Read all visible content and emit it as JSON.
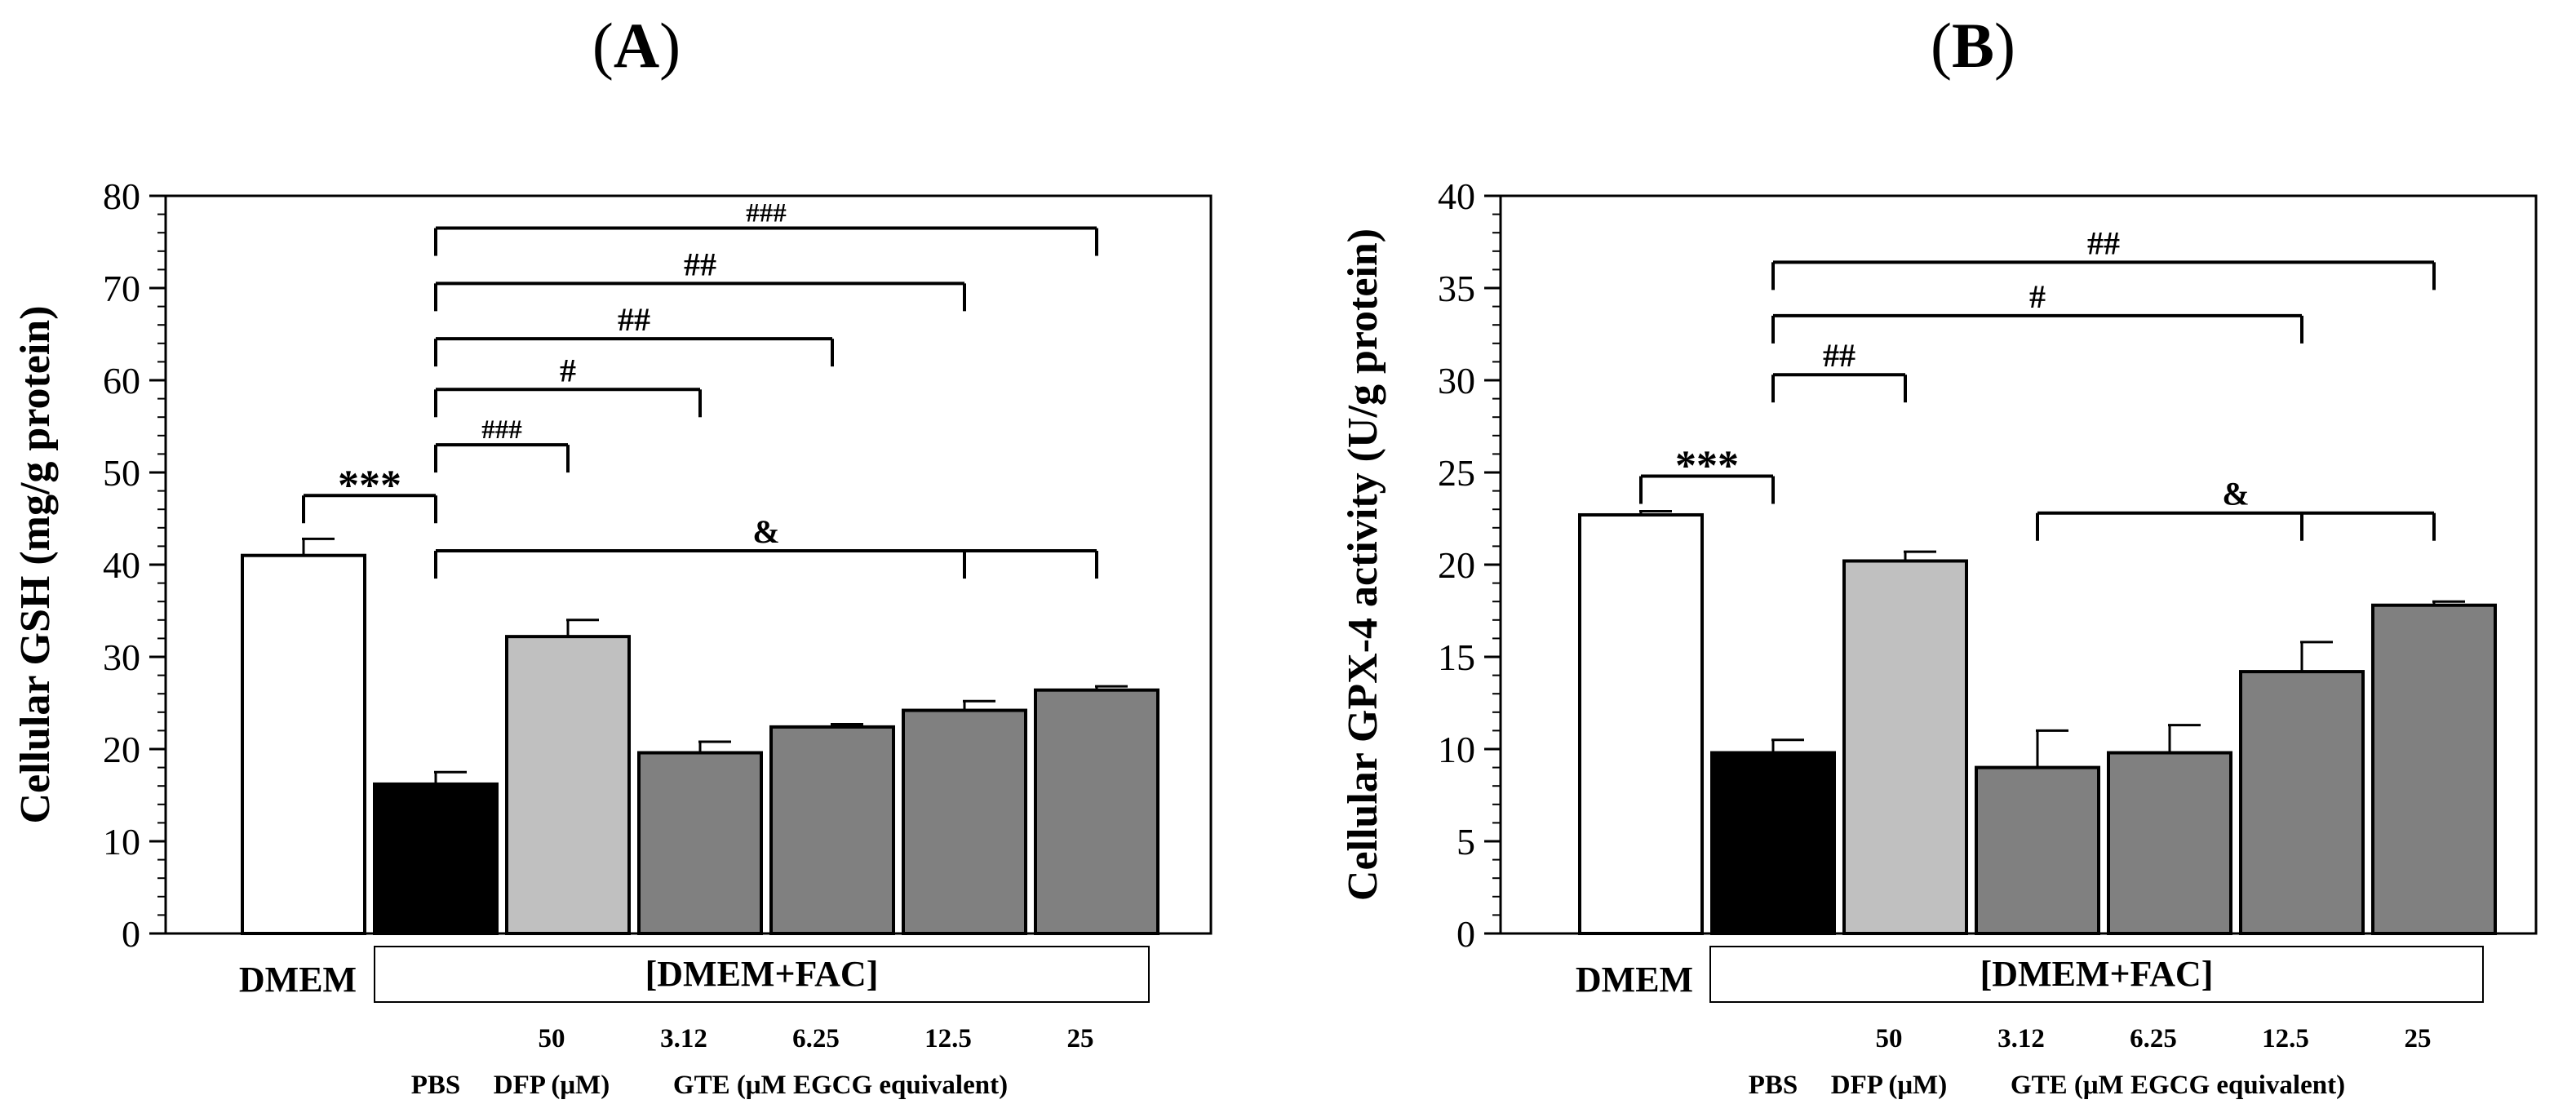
{
  "chart_data": [
    {
      "panel_label": "(A)",
      "type": "bar",
      "ylabel": "Cellular GSH (mg/g protein)",
      "ylim": [
        0,
        80
      ],
      "yticks": [
        0,
        10,
        20,
        30,
        40,
        50,
        60,
        70,
        80
      ],
      "categories": [
        "DMEM",
        "PBS",
        "DFP 50",
        "GTE 3.12",
        "GTE 6.25",
        "GTE 12.5",
        "GTE 25"
      ],
      "values": [
        41.0,
        16.2,
        32.2,
        19.6,
        22.4,
        24.2,
        26.4
      ],
      "errors": [
        1.8,
        1.3,
        1.8,
        1.2,
        0.3,
        1.0,
        0.4
      ],
      "colors": [
        "#ffffff",
        "#000000",
        "#c0c0c0",
        "#808080",
        "#808080",
        "#808080",
        "#808080"
      ],
      "dmem_label": "DMEM",
      "group_box_label": "[DMEM+FAC]",
      "x_labels_top": [
        "50",
        "3.12",
        "6.25",
        "12.5",
        "25"
      ],
      "x_labels_bottom": [
        "PBS",
        "DFP (μM)",
        "GTE (μM EGCG equivalent)"
      ],
      "annotations": [
        {
          "text": "***",
          "from": 0,
          "to": 1,
          "drops": [],
          "level": 47.5,
          "big": true
        },
        {
          "text": "###",
          "from": 1,
          "to": 2,
          "drops": [
            2
          ],
          "level": 53,
          "small": true
        },
        {
          "text": "#",
          "from": 1,
          "to": 3,
          "drops": [
            3
          ],
          "level": 59
        },
        {
          "text": "##",
          "from": 1,
          "to": 4,
          "drops": [
            4
          ],
          "level": 64.5
        },
        {
          "text": "##",
          "from": 1,
          "to": 5,
          "drops": [
            5
          ],
          "level": 70.5
        },
        {
          "text": "###",
          "from": 1,
          "to": 6,
          "drops": [
            6
          ],
          "level": 76.5,
          "small": true
        },
        {
          "text": "&",
          "from": 1,
          "to": 6,
          "drops": [
            5,
            6
          ],
          "level": 41.5
        }
      ]
    },
    {
      "panel_label": "(B)",
      "type": "bar",
      "ylabel": "Cellular GPX-4 activity (U/g protein)",
      "ylim": [
        0,
        40
      ],
      "yticks": [
        0,
        5,
        10,
        15,
        20,
        25,
        30,
        35,
        40
      ],
      "categories": [
        "DMEM",
        "PBS",
        "DFP 50",
        "GTE 3.12",
        "GTE 6.25",
        "GTE 12.5",
        "GTE 25"
      ],
      "values": [
        22.7,
        9.8,
        20.2,
        9.0,
        9.8,
        14.2,
        17.8
      ],
      "errors": [
        0.2,
        0.7,
        0.5,
        2.0,
        1.5,
        1.6,
        0.2
      ],
      "colors": [
        "#ffffff",
        "#000000",
        "#c0c0c0",
        "#808080",
        "#808080",
        "#808080",
        "#808080"
      ],
      "dmem_label": "DMEM",
      "group_box_label": "[DMEM+FAC]",
      "x_labels_top": [
        "50",
        "3.12",
        "6.25",
        "12.5",
        "25"
      ],
      "x_labels_bottom": [
        "PBS",
        "DFP (μM)",
        "GTE (μM EGCG equivalent)"
      ],
      "annotations": [
        {
          "text": "***",
          "from": 0,
          "to": 1,
          "drops": [],
          "level": 24.8,
          "big": true
        },
        {
          "text": "##",
          "from": 1,
          "to": 2,
          "drops": [
            2
          ],
          "level": 30.3
        },
        {
          "text": "#",
          "from": 1,
          "to": 5,
          "drops": [
            5
          ],
          "level": 33.5
        },
        {
          "text": "##",
          "from": 1,
          "to": 6,
          "drops": [
            6
          ],
          "level": 36.4
        },
        {
          "text": "&",
          "from": 3,
          "to": 6,
          "drops": [
            5,
            6
          ],
          "level": 22.8
        }
      ]
    }
  ]
}
